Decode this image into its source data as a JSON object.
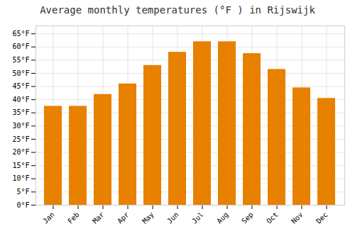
{
  "chart_data": {
    "type": "bar",
    "title": "Average monthly temperatures (°F ) in Rijswijk",
    "categories": [
      "Jan",
      "Feb",
      "Mar",
      "Apr",
      "May",
      "Jun",
      "Jul",
      "Aug",
      "Sep",
      "Oct",
      "Nov",
      "Dec"
    ],
    "values": [
      37.5,
      37.5,
      42,
      46,
      53,
      58,
      62,
      62,
      57.5,
      51.5,
      44.5,
      40.5
    ],
    "color": "#E88000",
    "ylim": [
      0,
      68
    ],
    "yticks": [
      {
        "value": 0,
        "label": "0°F"
      },
      {
        "value": 5,
        "label": "5°F"
      },
      {
        "value": 10,
        "label": "10°F"
      },
      {
        "value": 15,
        "label": "15°F"
      },
      {
        "value": 20,
        "label": "20°F"
      },
      {
        "value": 25,
        "label": "25°F"
      },
      {
        "value": 30,
        "label": "30°F"
      },
      {
        "value": 35,
        "label": "35°F"
      },
      {
        "value": 40,
        "label": "40°F"
      },
      {
        "value": 45,
        "label": "45°F"
      },
      {
        "value": 50,
        "label": "50°F"
      },
      {
        "value": 55,
        "label": "55°F"
      },
      {
        "value": 60,
        "label": "60°F"
      },
      {
        "value": 65,
        "label": "65°F"
      }
    ],
    "grid": true
  }
}
